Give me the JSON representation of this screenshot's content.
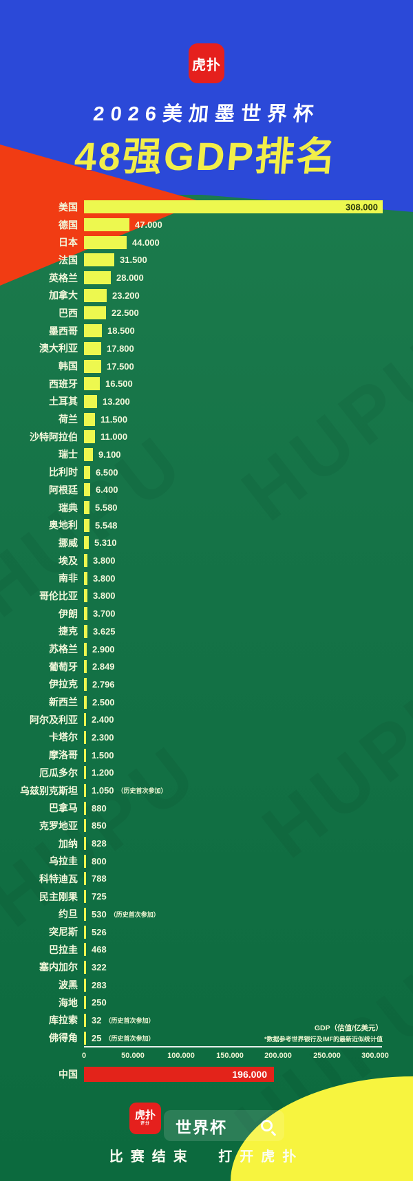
{
  "watermark": "HUPU",
  "colors": {
    "blue": "#2b49d8",
    "orange": "#f13c13",
    "green": "#157347",
    "bar": "#edf84f",
    "china_red": "#e3231a",
    "title_yellow": "#f2ee49",
    "corner_yellow": "#f7f43f",
    "logo_red": "#e5201d"
  },
  "header": {
    "logo_text": "虎扑",
    "title_line1": "2026美加墨世界杯",
    "title_line2": "48强GDP排名"
  },
  "chart_data": {
    "type": "bar",
    "title": "2026美加墨世界杯 48强GDP排名",
    "unit_note": "GDP（估值/亿美元）",
    "source_note": "*数据参考世界银行及IMF的最新近似统计值",
    "xlim": [
      0,
      300000
    ],
    "x_ticks": [
      "0",
      "50.000",
      "100.000",
      "150.000",
      "200.000",
      "250.000",
      "300.000"
    ],
    "x_tick_values": [
      0,
      50000,
      100000,
      150000,
      200000,
      250000,
      300000
    ],
    "legend_position": "none",
    "grid": false,
    "categories": [
      "美国",
      "德国",
      "日本",
      "法国",
      "英格兰",
      "加拿大",
      "巴西",
      "墨西哥",
      "澳大利亚",
      "韩国",
      "西班牙",
      "土耳其",
      "荷兰",
      "沙特阿拉伯",
      "瑞士",
      "比利时",
      "阿根廷",
      "瑞典",
      "奥地利",
      "挪威",
      "埃及",
      "南非",
      "哥伦比亚",
      "伊朗",
      "捷克",
      "苏格兰",
      "葡萄牙",
      "伊拉克",
      "新西兰",
      "阿尔及利亚",
      "卡塔尔",
      "摩洛哥",
      "厄瓜多尔",
      "乌兹别克斯坦",
      "巴拿马",
      "克罗地亚",
      "加纳",
      "乌拉圭",
      "科特迪瓦",
      "民主刚果",
      "约旦",
      "突尼斯",
      "巴拉圭",
      "塞内加尔",
      "波黑",
      "海地",
      "库拉索",
      "佛得角"
    ],
    "values": [
      308000,
      47000,
      44000,
      31500,
      28000,
      23200,
      22500,
      18500,
      17800,
      17500,
      16500,
      13200,
      11500,
      11000,
      9100,
      6500,
      6400,
      5580,
      5548,
      5310,
      3800,
      3800,
      3800,
      3700,
      3625,
      2900,
      2849,
      2796,
      2500,
      2400,
      2300,
      1500,
      1200,
      1050,
      880,
      850,
      828,
      800,
      788,
      725,
      530,
      526,
      468,
      322,
      283,
      250,
      32,
      25
    ],
    "rows": [
      {
        "label": "美国",
        "value": 308000,
        "display": "308.000",
        "value_inside": true
      },
      {
        "label": "德国",
        "value": 47000,
        "display": "47.000"
      },
      {
        "label": "日本",
        "value": 44000,
        "display": "44.000"
      },
      {
        "label": "法国",
        "value": 31500,
        "display": "31.500"
      },
      {
        "label": "英格兰",
        "value": 28000,
        "display": "28.000"
      },
      {
        "label": "加拿大",
        "value": 23200,
        "display": "23.200"
      },
      {
        "label": "巴西",
        "value": 22500,
        "display": "22.500"
      },
      {
        "label": "墨西哥",
        "value": 18500,
        "display": "18.500"
      },
      {
        "label": "澳大利亚",
        "value": 17800,
        "display": "17.800"
      },
      {
        "label": "韩国",
        "value": 17500,
        "display": "17.500"
      },
      {
        "label": "西班牙",
        "value": 16500,
        "display": "16.500"
      },
      {
        "label": "土耳其",
        "value": 13200,
        "display": "13.200"
      },
      {
        "label": "荷兰",
        "value": 11500,
        "display": "11.500"
      },
      {
        "label": "沙特阿拉伯",
        "value": 11000,
        "display": "11.000"
      },
      {
        "label": "瑞士",
        "value": 9100,
        "display": "9.100"
      },
      {
        "label": "比利时",
        "value": 6500,
        "display": "6.500"
      },
      {
        "label": "阿根廷",
        "value": 6400,
        "display": "6.400"
      },
      {
        "label": "瑞典",
        "value": 5580,
        "display": "5.580"
      },
      {
        "label": "奥地利",
        "value": 5548,
        "display": "5.548"
      },
      {
        "label": "挪威",
        "value": 5310,
        "display": "5.310"
      },
      {
        "label": "埃及",
        "value": 3800,
        "display": "3.800"
      },
      {
        "label": "南非",
        "value": 3800,
        "display": "3.800"
      },
      {
        "label": "哥伦比亚",
        "value": 3800,
        "display": "3.800"
      },
      {
        "label": "伊朗",
        "value": 3700,
        "display": "3.700"
      },
      {
        "label": "捷克",
        "value": 3625,
        "display": "3.625"
      },
      {
        "label": "苏格兰",
        "value": 2900,
        "display": "2.900"
      },
      {
        "label": "葡萄牙",
        "value": 2849,
        "display": "2.849"
      },
      {
        "label": "伊拉克",
        "value": 2796,
        "display": "2.796"
      },
      {
        "label": "新西兰",
        "value": 2500,
        "display": "2.500"
      },
      {
        "label": "阿尔及利亚",
        "value": 2400,
        "display": "2.400"
      },
      {
        "label": "卡塔尔",
        "value": 2300,
        "display": "2.300"
      },
      {
        "label": "摩洛哥",
        "value": 1500,
        "display": "1.500"
      },
      {
        "label": "厄瓜多尔",
        "value": 1200,
        "display": "1.200"
      },
      {
        "label": "乌兹别克斯坦",
        "value": 1050,
        "display": "1.050",
        "note": "（历史首次参加）"
      },
      {
        "label": "巴拿马",
        "value": 880,
        "display": "880"
      },
      {
        "label": "克罗地亚",
        "value": 850,
        "display": "850"
      },
      {
        "label": "加纳",
        "value": 828,
        "display": "828"
      },
      {
        "label": "乌拉圭",
        "value": 800,
        "display": "800"
      },
      {
        "label": "科特迪瓦",
        "value": 788,
        "display": "788"
      },
      {
        "label": "民主刚果",
        "value": 725,
        "display": "725"
      },
      {
        "label": "约旦",
        "value": 530,
        "display": "530",
        "note": "（历史首次参加）"
      },
      {
        "label": "突尼斯",
        "value": 526,
        "display": "526"
      },
      {
        "label": "巴拉圭",
        "value": 468,
        "display": "468"
      },
      {
        "label": "塞内加尔",
        "value": 322,
        "display": "322"
      },
      {
        "label": "波黑",
        "value": 283,
        "display": "283"
      },
      {
        "label": "海地",
        "value": 250,
        "display": "250"
      },
      {
        "label": "库拉索",
        "value": 32,
        "display": "32",
        "note": "（历史首次参加）"
      },
      {
        "label": "佛得角",
        "value": 25,
        "display": "25",
        "note": "（历史首次参加）"
      }
    ],
    "highlight_row": {
      "label": "中国",
      "value": 196000,
      "display": "196.000"
    }
  },
  "footer": {
    "logo_text": "虎扑",
    "logo_sub": "评分",
    "search_text": "世界杯",
    "tagline_left": "比赛结束",
    "tagline_right": "打开虎扑"
  }
}
